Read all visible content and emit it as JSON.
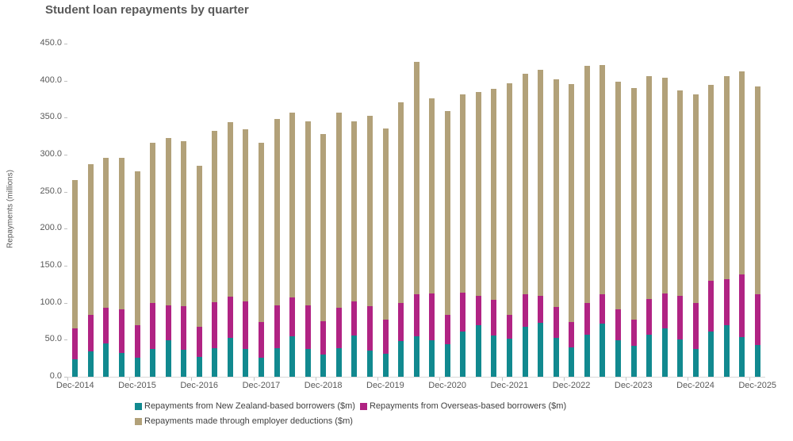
{
  "title": "Student loan repayments by quarter",
  "chart_data": {
    "type": "bar",
    "stacked": true,
    "title": "Student loan repayments by quarter",
    "xlabel": "",
    "ylabel": "Repayments (millions)",
    "ylim": [
      0,
      450
    ],
    "ytick_step": 50,
    "ytick_labels": [
      "450.0",
      "400.0",
      "350.0",
      "300.0",
      "250.0",
      "200.0",
      "150.0",
      "100.0",
      "50.0",
      "0.0"
    ],
    "grid": false,
    "legend_position": "bottom",
    "x_tick_labels": [
      "Dec-2014",
      "Dec-2015",
      "Dec-2016",
      "Dec-2017",
      "Dec-2018",
      "Dec-2019",
      "Dec-2020",
      "Dec-2021",
      "Dec-2022",
      "Dec-2023",
      "Dec-2024",
      "Dec-2025"
    ],
    "x_label_interval": 4,
    "categories": [
      "Dec-2014",
      "Mar-2015",
      "Jun-2015",
      "Sep-2015",
      "Dec-2015",
      "Mar-2016",
      "Jun-2016",
      "Sep-2016",
      "Dec-2016",
      "Mar-2017",
      "Jun-2017",
      "Sep-2017",
      "Dec-2017",
      "Mar-2018",
      "Jun-2018",
      "Sep-2018",
      "Dec-2018",
      "Mar-2019",
      "Jun-2019",
      "Sep-2019",
      "Dec-2019",
      "Mar-2020",
      "Jun-2020",
      "Sep-2020",
      "Dec-2020",
      "Mar-2021",
      "Jun-2021",
      "Sep-2021",
      "Dec-2021",
      "Mar-2022",
      "Jun-2022",
      "Sep-2022",
      "Dec-2022",
      "Mar-2023",
      "Jun-2023",
      "Sep-2023",
      "Dec-2023",
      "Mar-2024",
      "Jun-2024",
      "Sep-2024",
      "Dec-2024",
      "Mar-2025",
      "Jun-2025",
      "Sep-2025",
      "Dec-2025"
    ],
    "series": [
      {
        "name": "Repayments from New Zealand-based borrowers ($m)",
        "color": "#11898F",
        "values": [
          24,
          34,
          45,
          32,
          26,
          38,
          49,
          36,
          27,
          39,
          53,
          38,
          26,
          39,
          55,
          38,
          30,
          39,
          56,
          35,
          31,
          48,
          55,
          49,
          44,
          61,
          70,
          56,
          51,
          68,
          73,
          53,
          40,
          57,
          72,
          49,
          42,
          57,
          65,
          50,
          38,
          61,
          70,
          54,
          43
        ]
      },
      {
        "name": "Repayments from Overseas-based borrowers ($m)",
        "color": "#B02383",
        "values": [
          41,
          50,
          48,
          59,
          44,
          62,
          48,
          59,
          41,
          62,
          55,
          64,
          48,
          58,
          52,
          58,
          45,
          54,
          46,
          60,
          46,
          52,
          57,
          64,
          40,
          53,
          39,
          48,
          33,
          43,
          36,
          41,
          34,
          43,
          39,
          42,
          35,
          48,
          47,
          59,
          62,
          69,
          62,
          84,
          68
        ]
      },
      {
        "name": "Repayments made through employer deductions ($m)",
        "color": "#B2A179",
        "values": [
          201,
          203,
          203,
          205,
          208,
          216,
          226,
          223,
          217,
          231,
          236,
          232,
          242,
          251,
          250,
          249,
          253,
          264,
          243,
          257,
          258,
          271,
          313,
          263,
          275,
          267,
          276,
          285,
          312,
          298,
          306,
          308,
          322,
          320,
          310,
          308,
          313,
          301,
          292,
          278,
          281,
          264,
          274,
          275,
          281
        ]
      }
    ]
  },
  "colors": {
    "title_text": "#595959",
    "axis_text": "#595959",
    "legend_text": "#404040",
    "axis_line": "#D9D9D9",
    "tick_mark": "#BFBFBF",
    "background": "#FFFFFF"
  }
}
